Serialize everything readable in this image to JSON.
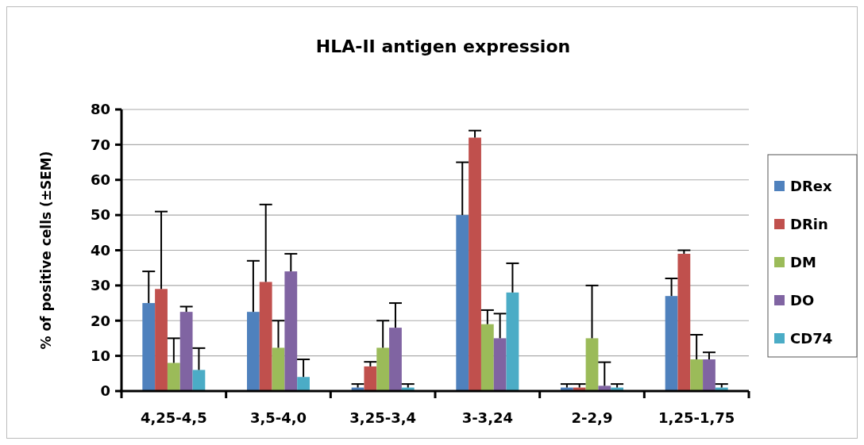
{
  "chart_data": {
    "type": "bar",
    "title": "HLA-II antigen expression",
    "ylabel": "% of positive cells (±SEM)",
    "categories": [
      "4,25-4,5",
      "3,5-4,0",
      "3,25-3,4",
      "3-3,24",
      "2-2,9",
      "1,25-1,75"
    ],
    "series": [
      {
        "name": "DRex",
        "color": "#4f81bd",
        "values": [
          25,
          22.5,
          1,
          50,
          1,
          27
        ],
        "errors": [
          [
            25,
            34
          ],
          [
            22.5,
            37
          ],
          [
            1,
            2
          ],
          [
            50,
            65
          ],
          [
            1,
            2
          ],
          [
            27,
            32
          ]
        ]
      },
      {
        "name": "DRin",
        "color": "#c0504d",
        "values": [
          29,
          31,
          7,
          72,
          1,
          39
        ],
        "errors": [
          [
            29,
            51
          ],
          [
            31,
            53
          ],
          [
            7,
            8.3
          ],
          [
            72,
            74
          ],
          [
            1,
            2
          ],
          [
            39,
            40
          ]
        ]
      },
      {
        "name": "DM",
        "color": "#9bbb59",
        "values": [
          8,
          12.3,
          12.3,
          19,
          15,
          9
        ],
        "errors": [
          [
            8,
            15
          ],
          [
            12.3,
            20
          ],
          [
            12.3,
            20
          ],
          [
            19,
            23
          ],
          [
            15,
            30
          ],
          [
            9,
            16
          ]
        ]
      },
      {
        "name": "DO",
        "color": "#8064a2",
        "values": [
          22.5,
          34,
          18,
          15,
          1.5,
          9
        ],
        "errors": [
          [
            22.5,
            24
          ],
          [
            34,
            39
          ],
          [
            18,
            25
          ],
          [
            15,
            22
          ],
          [
            1.5,
            8.2
          ],
          [
            9,
            11
          ]
        ]
      },
      {
        "name": "CD74",
        "color": "#4bacc6",
        "values": [
          6,
          4,
          1,
          28,
          1,
          1
        ],
        "errors": [
          [
            6,
            12.2
          ],
          [
            4,
            9
          ],
          [
            1,
            2
          ],
          [
            28,
            36.3
          ],
          [
            1,
            2
          ],
          [
            1,
            2
          ]
        ]
      }
    ],
    "ylim": [
      0,
      80
    ],
    "yticks": [
      0,
      10,
      20,
      30,
      40,
      50,
      60,
      70,
      80
    ],
    "grid": "y",
    "legend": "right"
  }
}
